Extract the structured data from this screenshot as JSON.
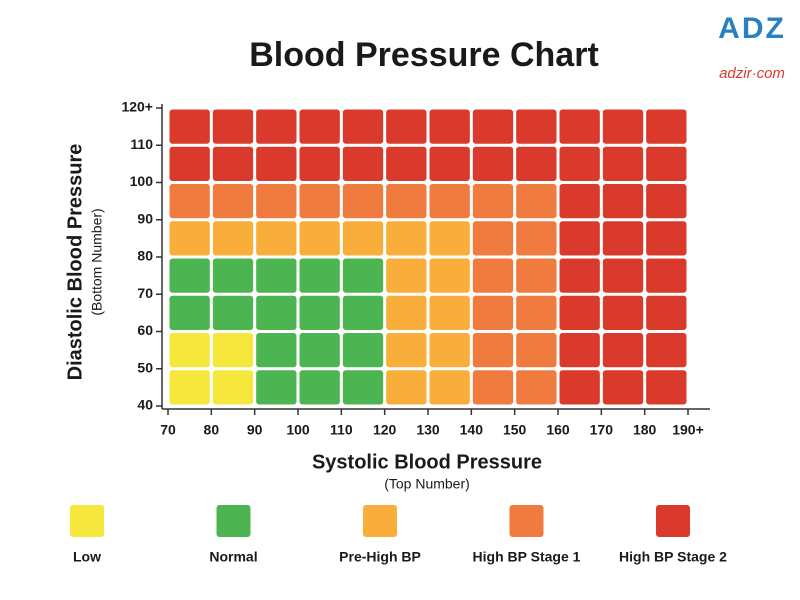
{
  "brand": {
    "logo": "ADZ",
    "site": "adzir·com"
  },
  "chart_data": {
    "type": "heatmap",
    "title": "Blood Pressure Chart",
    "x_label": "Systolic Blood Pressure",
    "x_sublabel": "(Top Number)",
    "y_label": "Diastolic Blood Pressure",
    "y_sublabel": "(Bottom Number)",
    "xlim": [
      70,
      190
    ],
    "xticks": [
      70,
      80,
      90,
      100,
      110,
      120,
      130,
      140,
      150,
      160,
      170,
      180,
      {
        "value": 190,
        "label": "190+"
      }
    ],
    "ylim": [
      40,
      120
    ],
    "yticks": [
      40,
      50,
      60,
      70,
      80,
      90,
      100,
      110,
      {
        "value": 120,
        "label": "120+"
      }
    ],
    "series": [
      {
        "name": "Low",
        "color": "#f5e73c"
      },
      {
        "name": "Normal",
        "color": "#4cb451"
      },
      {
        "name": "Pre-High BP",
        "color": "#f9ad3a"
      },
      {
        "name": "High BP Stage 1",
        "color": "#f07b3f"
      },
      {
        "name": "High BP Stage 2",
        "color": "#d93a2b"
      }
    ],
    "cells": [
      [
        "Low",
        "Low",
        "Normal",
        "Normal",
        "Normal",
        "Pre-High BP",
        "Pre-High BP",
        "High BP Stage 1",
        "High BP Stage 1",
        "High BP Stage 2",
        "High BP Stage 2",
        "High BP Stage 2"
      ],
      [
        "Low",
        "Low",
        "Normal",
        "Normal",
        "Normal",
        "Pre-High BP",
        "Pre-High BP",
        "High BP Stage 1",
        "High BP Stage 1",
        "High BP Stage 2",
        "High BP Stage 2",
        "High BP Stage 2"
      ],
      [
        "Normal",
        "Normal",
        "Normal",
        "Normal",
        "Normal",
        "Pre-High BP",
        "Pre-High BP",
        "High BP Stage 1",
        "High BP Stage 1",
        "High BP Stage 2",
        "High BP Stage 2",
        "High BP Stage 2"
      ],
      [
        "Normal",
        "Normal",
        "Normal",
        "Normal",
        "Normal",
        "Pre-High BP",
        "Pre-High BP",
        "High BP Stage 1",
        "High BP Stage 1",
        "High BP Stage 2",
        "High BP Stage 2",
        "High BP Stage 2"
      ],
      [
        "Pre-High BP",
        "Pre-High BP",
        "Pre-High BP",
        "Pre-High BP",
        "Pre-High BP",
        "Pre-High BP",
        "Pre-High BP",
        "High BP Stage 1",
        "High BP Stage 1",
        "High BP Stage 2",
        "High BP Stage 2",
        "High BP Stage 2"
      ],
      [
        "High BP Stage 1",
        "High BP Stage 1",
        "High BP Stage 1",
        "High BP Stage 1",
        "High BP Stage 1",
        "High BP Stage 1",
        "High BP Stage 1",
        "High BP Stage 1",
        "High BP Stage 1",
        "High BP Stage 2",
        "High BP Stage 2",
        "High BP Stage 2"
      ],
      [
        "High BP Stage 2",
        "High BP Stage 2",
        "High BP Stage 2",
        "High BP Stage 2",
        "High BP Stage 2",
        "High BP Stage 2",
        "High BP Stage 2",
        "High BP Stage 2",
        "High BP Stage 2",
        "High BP Stage 2",
        "High BP Stage 2",
        "High BP Stage 2"
      ],
      [
        "High BP Stage 2",
        "High BP Stage 2",
        "High BP Stage 2",
        "High BP Stage 2",
        "High BP Stage 2",
        "High BP Stage 2",
        "High BP Stage 2",
        "High BP Stage 2",
        "High BP Stage 2",
        "High BP Stage 2",
        "High BP Stage 2",
        "High BP Stage 2"
      ]
    ]
  }
}
